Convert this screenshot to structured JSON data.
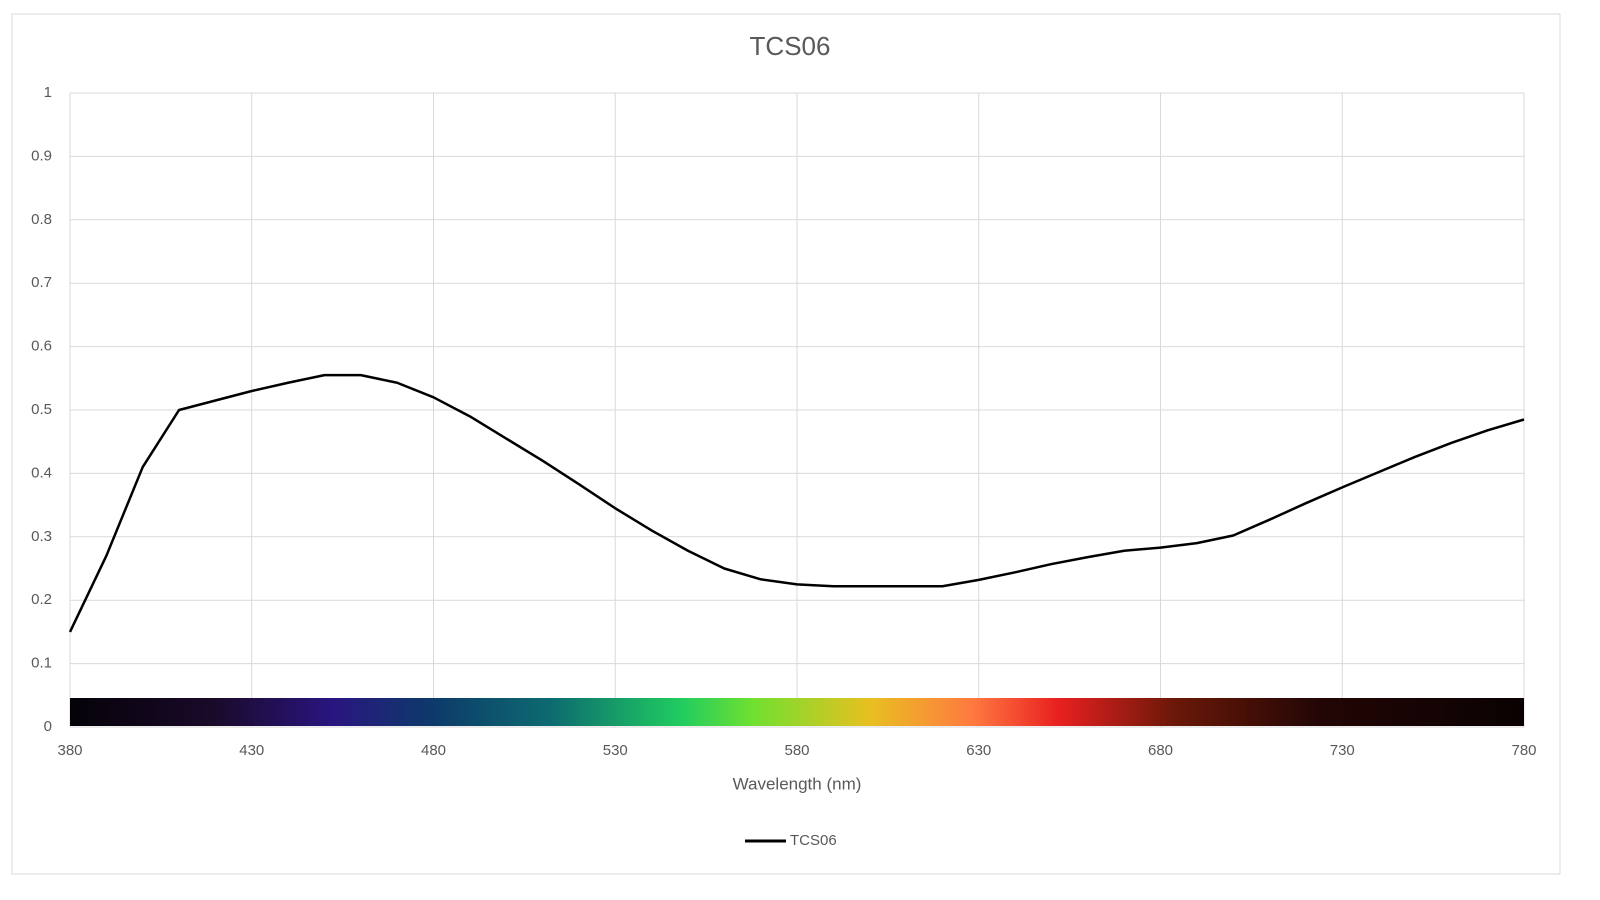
{
  "chart_data": {
    "type": "line",
    "title": "TCS06",
    "x_label": "Wavelength (nm)",
    "x": [
      380,
      390,
      400,
      410,
      420,
      430,
      440,
      450,
      460,
      470,
      480,
      490,
      500,
      510,
      520,
      530,
      540,
      550,
      560,
      570,
      580,
      590,
      600,
      610,
      620,
      630,
      640,
      650,
      660,
      670,
      680,
      690,
      700,
      710,
      720,
      730,
      740,
      750,
      760,
      770,
      780
    ],
    "series": [
      {
        "name": "TCS06",
        "color": "#000000",
        "values": [
          0.15,
          0.27,
          0.41,
          0.5,
          0.515,
          0.53,
          0.543,
          0.555,
          0.555,
          0.543,
          0.52,
          0.49,
          0.455,
          0.42,
          0.383,
          0.345,
          0.31,
          0.278,
          0.25,
          0.233,
          0.225,
          0.222,
          0.222,
          0.222,
          0.222,
          0.232,
          0.244,
          0.257,
          0.268,
          0.278,
          0.283,
          0.29,
          0.302,
          0.327,
          0.353,
          0.378,
          0.402,
          0.426,
          0.448,
          0.468,
          0.485
        ]
      }
    ],
    "xlim": [
      380,
      780
    ],
    "xticks": [
      380,
      430,
      480,
      530,
      580,
      630,
      680,
      730,
      780
    ],
    "ylim": [
      0,
      1
    ],
    "yticks": [
      0,
      0.1,
      0.2,
      0.3,
      0.4,
      0.5,
      0.6,
      0.7,
      0.8,
      0.9,
      1
    ],
    "grid": true,
    "legend": "bottom"
  }
}
